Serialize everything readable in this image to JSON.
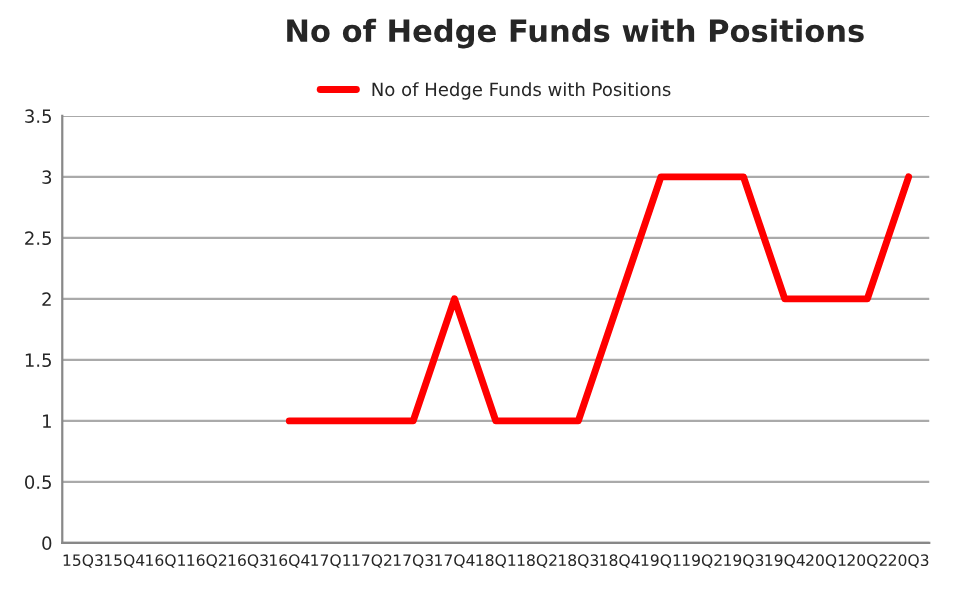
{
  "chart_data": {
    "type": "line",
    "title": "No of Hedge Funds with Positions",
    "categories": [
      "15Q3",
      "15Q4",
      "16Q1",
      "16Q2",
      "16Q3",
      "16Q4",
      "17Q1",
      "17Q2",
      "17Q3",
      "17Q4",
      "18Q1",
      "18Q2",
      "18Q3",
      "18Q4",
      "19Q1",
      "19Q2",
      "19Q3",
      "19Q4",
      "20Q1",
      "20Q2",
      "20Q3"
    ],
    "series": [
      {
        "name": "No of Hedge Funds with Positions",
        "color": "#ff0000",
        "values": [
          null,
          null,
          null,
          null,
          null,
          1,
          1,
          1,
          1,
          2,
          1,
          1,
          1,
          2,
          3,
          3,
          3,
          2,
          2,
          2,
          3
        ]
      }
    ],
    "ylim": [
      0,
      3.5
    ],
    "yticks": [
      0,
      0.5,
      1,
      1.5,
      2,
      2.5,
      3,
      3.5
    ],
    "grid": "y",
    "legend": "top",
    "marker": "none",
    "line_style": "solid"
  }
}
